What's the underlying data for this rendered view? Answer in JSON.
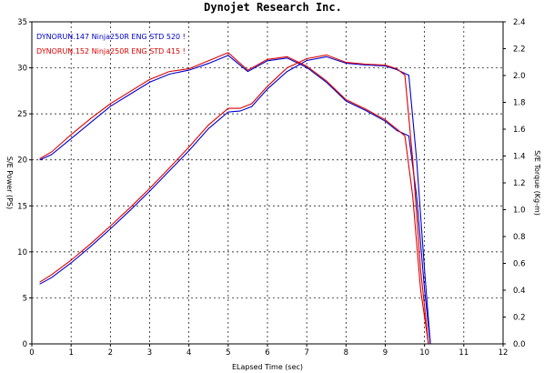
{
  "chart_data": {
    "type": "line",
    "title": "Dynojet  Research  Inc.",
    "xlabel": "ELapsed Time (sec)",
    "ylabel_left": "S/E Power (PS)",
    "ylabel_right": "S/E Torque (Kg-m)",
    "xlim": [
      0,
      12
    ],
    "ylim_left": [
      0,
      35
    ],
    "ylim_right": [
      0,
      2.4
    ],
    "x_ticks": [
      "0",
      "1",
      "2",
      "3",
      "4",
      "5",
      "6",
      "7",
      "8",
      "9",
      "10",
      "11",
      "12"
    ],
    "y_ticks_left": [
      "0",
      "5",
      "10",
      "15",
      "20",
      "25",
      "30",
      "35"
    ],
    "y_ticks_right": [
      "0.0",
      "0.2",
      "0.4",
      "0.6",
      "0.8",
      "1.0",
      "1.2",
      "1.4",
      "1.6",
      "1.8",
      "2.0",
      "2.2",
      "2.4"
    ],
    "grid": true,
    "legend_position": "top-left",
    "series": [
      {
        "name": "DYNORUN.147   Ninja250R ENG STD 520 !",
        "color": "#0000cc",
        "power": {
          "x": [
            0.2,
            0.5,
            1.0,
            1.5,
            2.0,
            2.5,
            3.0,
            3.5,
            4.0,
            4.5,
            5.0,
            5.3,
            5.6,
            6.0,
            6.5,
            7.0,
            7.5,
            8.0,
            8.5,
            9.0,
            9.3,
            9.6,
            9.8,
            10.0,
            10.15
          ],
          "y": [
            6.5,
            7.2,
            8.8,
            10.6,
            12.5,
            14.5,
            16.6,
            18.8,
            21.0,
            23.4,
            25.2,
            25.3,
            25.8,
            27.7,
            29.6,
            30.8,
            31.2,
            30.5,
            30.3,
            30.2,
            29.8,
            29.2,
            20.0,
            8.0,
            0.0
          ]
        },
        "torque": {
          "x": [
            0.2,
            0.5,
            1.0,
            1.5,
            2.0,
            2.5,
            3.0,
            3.5,
            4.0,
            4.5,
            5.0,
            5.5,
            6.0,
            6.5,
            7.0,
            7.5,
            8.0,
            8.5,
            9.0,
            9.3,
            9.6,
            9.8,
            10.0,
            10.15
          ],
          "y": [
            1.37,
            1.41,
            1.53,
            1.65,
            1.77,
            1.86,
            1.95,
            2.01,
            2.04,
            2.09,
            2.15,
            2.03,
            2.11,
            2.13,
            2.06,
            1.95,
            1.81,
            1.74,
            1.66,
            1.59,
            1.55,
            1.1,
            0.4,
            0.0
          ]
        }
      },
      {
        "name": "DYNORUN.152   Ninja250R ENG STD 415 !",
        "color": "#dd0000",
        "power": {
          "x": [
            0.2,
            0.5,
            1.0,
            1.5,
            2.0,
            2.5,
            3.0,
            3.5,
            4.0,
            4.5,
            5.0,
            5.3,
            5.6,
            6.0,
            6.5,
            7.0,
            7.5,
            8.0,
            8.5,
            9.0,
            9.3,
            9.5,
            9.7,
            9.9,
            10.1
          ],
          "y": [
            6.7,
            7.5,
            9.1,
            10.9,
            12.8,
            14.8,
            16.9,
            19.1,
            21.4,
            23.8,
            25.6,
            25.6,
            26.1,
            28.0,
            30.0,
            31.0,
            31.4,
            30.6,
            30.4,
            30.3,
            29.9,
            29.2,
            20.0,
            8.0,
            0.0
          ]
        },
        "torque": {
          "x": [
            0.2,
            0.5,
            1.0,
            1.5,
            2.0,
            2.5,
            3.0,
            3.5,
            4.0,
            4.5,
            5.0,
            5.5,
            6.0,
            6.5,
            7.0,
            7.5,
            8.0,
            8.5,
            9.0,
            9.3,
            9.5,
            9.7,
            9.9,
            10.1
          ],
          "y": [
            1.38,
            1.43,
            1.56,
            1.68,
            1.79,
            1.88,
            1.97,
            2.03,
            2.05,
            2.11,
            2.17,
            2.04,
            2.12,
            2.14,
            2.07,
            1.96,
            1.82,
            1.75,
            1.67,
            1.6,
            1.55,
            1.1,
            0.4,
            0.0
          ]
        }
      }
    ]
  }
}
